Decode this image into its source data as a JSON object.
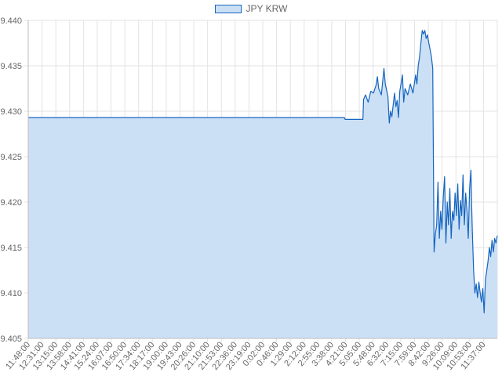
{
  "chart_data": {
    "type": "area",
    "legend": "top",
    "grid": true,
    "series": [
      {
        "name": "JPY KRW",
        "points": [
          [
            0,
            9.4293
          ],
          [
            1,
            9.4293
          ],
          [
            2,
            9.4293
          ],
          [
            3,
            9.4293
          ],
          [
            4,
            9.4293
          ],
          [
            5,
            9.4293
          ],
          [
            6,
            9.4293
          ],
          [
            7,
            9.4293
          ],
          [
            8,
            9.4293
          ],
          [
            9,
            9.4293
          ],
          [
            10,
            9.4293
          ],
          [
            11,
            9.4293
          ],
          [
            12,
            9.4293
          ],
          [
            13,
            9.4293
          ],
          [
            14,
            9.4293
          ],
          [
            15,
            9.4293
          ],
          [
            16,
            9.4293
          ],
          [
            17,
            9.4293
          ],
          [
            18,
            9.4293
          ],
          [
            19,
            9.4293
          ],
          [
            20,
            9.4293
          ],
          [
            21,
            9.4293
          ],
          [
            22,
            9.4293
          ],
          [
            23,
            9.4293
          ],
          [
            24,
            9.4293
          ],
          [
            24.05,
            9.4291
          ],
          [
            25.4,
            9.4291
          ],
          [
            25.45,
            9.4313
          ],
          [
            25.6,
            9.4318
          ],
          [
            25.8,
            9.431
          ],
          [
            26.0,
            9.4322
          ],
          [
            26.2,
            9.432
          ],
          [
            26.4,
            9.4329
          ],
          [
            26.5,
            9.4338
          ],
          [
            26.6,
            9.4325
          ],
          [
            26.8,
            9.4318
          ],
          [
            27.0,
            9.4347
          ],
          [
            27.1,
            9.433
          ],
          [
            27.3,
            9.4316
          ],
          [
            27.4,
            9.4287
          ],
          [
            27.5,
            9.43
          ],
          [
            27.6,
            9.4294
          ],
          [
            27.8,
            9.432
          ],
          [
            27.9,
            9.4305
          ],
          [
            28.0,
            9.4312
          ],
          [
            28.1,
            9.4293
          ],
          [
            28.2,
            9.4322
          ],
          [
            28.4,
            9.434
          ],
          [
            28.5,
            9.431
          ],
          [
            28.6,
            9.4325
          ],
          [
            28.8,
            9.4318
          ],
          [
            29.0,
            9.433
          ],
          [
            29.2,
            9.432
          ],
          [
            29.4,
            9.434
          ],
          [
            29.5,
            9.433
          ],
          [
            29.6,
            9.435
          ],
          [
            29.7,
            9.436
          ],
          [
            29.8,
            9.4375
          ],
          [
            29.9,
            9.4389
          ],
          [
            30.0,
            9.4385
          ],
          [
            30.1,
            9.4389
          ],
          [
            30.2,
            9.438
          ],
          [
            30.3,
            9.4384
          ],
          [
            30.4,
            9.4375
          ],
          [
            30.5,
            9.4368
          ],
          [
            30.6,
            9.436
          ],
          [
            30.7,
            9.4347
          ],
          [
            30.8,
            9.4145
          ],
          [
            30.9,
            9.4165
          ],
          [
            31.0,
            9.4175
          ],
          [
            31.1,
            9.4222
          ],
          [
            31.2,
            9.416
          ],
          [
            31.3,
            9.419
          ],
          [
            31.4,
            9.417
          ],
          [
            31.5,
            9.4205
          ],
          [
            31.6,
            9.4228
          ],
          [
            31.7,
            9.4155
          ],
          [
            31.8,
            9.42
          ],
          [
            31.9,
            9.4175
          ],
          [
            32.0,
            9.4215
          ],
          [
            32.1,
            9.416
          ],
          [
            32.2,
            9.419
          ],
          [
            32.3,
            9.418
          ],
          [
            32.4,
            9.421
          ],
          [
            32.5,
            9.4185
          ],
          [
            32.6,
            9.422
          ],
          [
            32.7,
            9.417
          ],
          [
            32.8,
            9.4202
          ],
          [
            32.9,
            9.4185
          ],
          [
            33.0,
            9.423
          ],
          [
            33.1,
            9.4175
          ],
          [
            33.2,
            9.421
          ],
          [
            33.3,
            9.419
          ],
          [
            33.4,
            9.416
          ],
          [
            33.5,
            9.4215
          ],
          [
            33.6,
            9.4235
          ],
          [
            33.65,
            9.42
          ],
          [
            33.7,
            9.417
          ],
          [
            33.8,
            9.4125
          ],
          [
            33.9,
            9.41
          ],
          [
            34.0,
            9.411
          ],
          [
            34.1,
            9.4095
          ],
          [
            34.2,
            9.4112
          ],
          [
            34.3,
            9.41
          ],
          [
            34.4,
            9.409
          ],
          [
            34.5,
            9.4105
          ],
          [
            34.6,
            9.4078
          ],
          [
            34.7,
            9.4115
          ],
          [
            34.8,
            9.4125
          ],
          [
            34.9,
            9.4135
          ],
          [
            35.0,
            9.415
          ],
          [
            35.1,
            9.414
          ],
          [
            35.2,
            9.4158
          ],
          [
            35.3,
            9.4145
          ],
          [
            35.4,
            9.416
          ],
          [
            35.5,
            9.4155
          ],
          [
            35.6,
            9.4163
          ]
        ]
      }
    ],
    "xlim": [
      0,
      35.6
    ],
    "ylim": [
      9.405,
      9.44
    ],
    "yticks": [
      "9.440",
      "9.435",
      "9.430",
      "9.425",
      "9.420",
      "9.415",
      "9.410",
      "9.405"
    ],
    "ytick_values": [
      9.44,
      9.435,
      9.43,
      9.425,
      9.42,
      9.415,
      9.41,
      9.405
    ],
    "xticks": [
      "11:48:00",
      "12:31:00",
      "13:15:00",
      "13:58:00",
      "14:41:00",
      "15:24:00",
      "16:07:00",
      "16:50:00",
      "17:34:00",
      "18:17:00",
      "19:00:00",
      "19:43:00",
      "20:26:00",
      "21:10:00",
      "21:53:00",
      "22:36:00",
      "23:19:00",
      "0:02:00",
      "0:46:00",
      "1:29:00",
      "2:12:00",
      "2:55:00",
      "3:38:00",
      "4:21:00",
      "5:05:00",
      "5:48:00",
      "6:32:00",
      "7:15:00",
      "7:59:00",
      "8:42:00",
      "9:26:00",
      "10:09:00",
      "10:53:00",
      "11:37:00"
    ],
    "colors": {
      "line": "#1565c0",
      "fill": "#cce0f5",
      "grid": "#e3e3e3",
      "axis": "#bdbdbd",
      "text": "#666666"
    }
  }
}
